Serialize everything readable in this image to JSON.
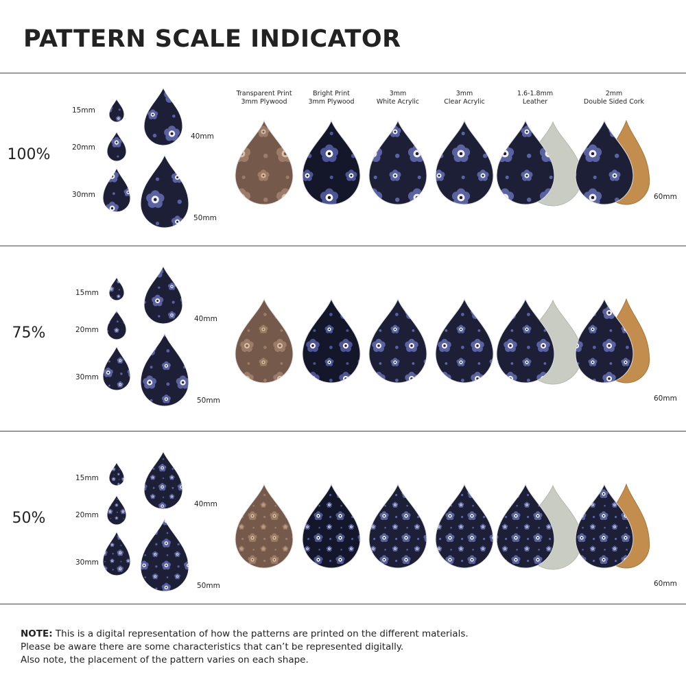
{
  "header": {
    "title": "PATTERN SCALE INDICATOR"
  },
  "materials": [
    {
      "line1": "Transparent Print",
      "line2": "3mm Plywood"
    },
    {
      "line1": "Bright Print",
      "line2": "3mm Plywood"
    },
    {
      "line1": "3mm",
      "line2": "White Acrylic"
    },
    {
      "line1": "3mm",
      "line2": "Clear Acrylic"
    },
    {
      "line1": "1.6-1.8mm",
      "line2": "Leather"
    },
    {
      "line1": "2mm",
      "line2": "Double Sided Cork"
    }
  ],
  "sections": [
    {
      "scale": "100%",
      "sizes": [
        "15mm",
        "20mm",
        "30mm",
        "40mm",
        "50mm"
      ],
      "material_size": "60mm"
    },
    {
      "scale": "75%",
      "sizes": [
        "15mm",
        "20mm",
        "30mm",
        "40mm",
        "50mm"
      ],
      "material_size": "60mm"
    },
    {
      "scale": "50%",
      "sizes": [
        "15mm",
        "20mm",
        "30mm",
        "40mm",
        "50mm"
      ],
      "material_size": "60mm"
    }
  ],
  "note": {
    "lead": "NOTE:",
    "lines": [
      "This is a digital representation of how the patterns are printed on the different materials.",
      "Please be aware there are some characteristics that can’t be represented digitally.",
      "Also note, the placement of the pattern varies on each shape."
    ]
  }
}
